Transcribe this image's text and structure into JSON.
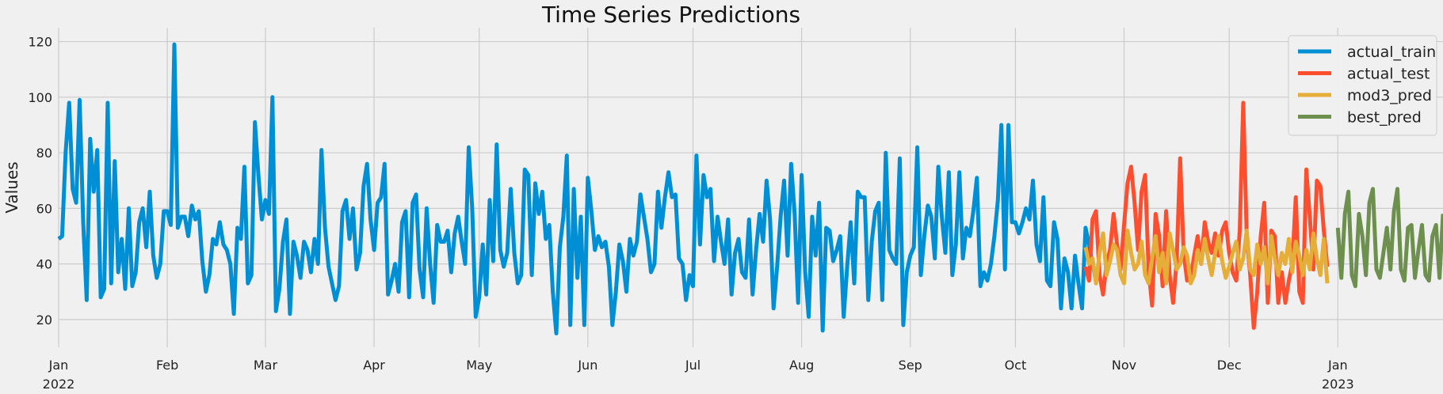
{
  "chart_data": {
    "type": "line",
    "title": "Time Series Predictions",
    "xlabel": "",
    "ylabel": "Values",
    "xlim": [
      "2022-01-01",
      "2023-01-31"
    ],
    "ylim": [
      10,
      125
    ],
    "yticks": [
      20,
      40,
      60,
      80,
      100,
      120
    ],
    "xticks": [
      {
        "date": "2022-01-01",
        "label": "Jan",
        "sublabel": "2022"
      },
      {
        "date": "2022-02-01",
        "label": "Feb",
        "sublabel": ""
      },
      {
        "date": "2022-03-01",
        "label": "Mar",
        "sublabel": ""
      },
      {
        "date": "2022-04-01",
        "label": "Apr",
        "sublabel": ""
      },
      {
        "date": "2022-05-01",
        "label": "May",
        "sublabel": ""
      },
      {
        "date": "2022-06-01",
        "label": "Jun",
        "sublabel": ""
      },
      {
        "date": "2022-07-01",
        "label": "Jul",
        "sublabel": ""
      },
      {
        "date": "2022-08-01",
        "label": "Aug",
        "sublabel": ""
      },
      {
        "date": "2022-09-01",
        "label": "Sep",
        "sublabel": ""
      },
      {
        "date": "2022-10-01",
        "label": "Oct",
        "sublabel": ""
      },
      {
        "date": "2022-11-01",
        "label": "Nov",
        "sublabel": ""
      },
      {
        "date": "2022-12-01",
        "label": "Dec",
        "sublabel": ""
      },
      {
        "date": "2023-01-01",
        "label": "Jan",
        "sublabel": "2023"
      }
    ],
    "grid": true,
    "legend_position": "top-right",
    "series": [
      {
        "name": "actual_train",
        "color": "#008fd5",
        "start_date": "2022-01-01",
        "frequency": "daily",
        "values": [
          49,
          50,
          80,
          98,
          67,
          62,
          99,
          55,
          27,
          85,
          66,
          81,
          28,
          31,
          98,
          33,
          77,
          37,
          49,
          31,
          60,
          32,
          37,
          55,
          60,
          46,
          66,
          43,
          35,
          40,
          59,
          59,
          54,
          119,
          53,
          57,
          57,
          50,
          61,
          56,
          59,
          41,
          30,
          36,
          49,
          47,
          55,
          47,
          45,
          40,
          22,
          53,
          49,
          75,
          33,
          36,
          91,
          72,
          56,
          63,
          58,
          100,
          23,
          31,
          48,
          56,
          22,
          48,
          43,
          35,
          48,
          45,
          37,
          49,
          40,
          81,
          53,
          39,
          33,
          27,
          32,
          59,
          63,
          49,
          60,
          38,
          44,
          68,
          76,
          56,
          45,
          62,
          64,
          76,
          29,
          34,
          40,
          30,
          55,
          59,
          28,
          62,
          65,
          38,
          28,
          60,
          40,
          26,
          54,
          48,
          48,
          52,
          37,
          51,
          57,
          48,
          40,
          82,
          60,
          21,
          28,
          47,
          29,
          63,
          41,
          83,
          45,
          39,
          44,
          67,
          44,
          33,
          36,
          74,
          72,
          36,
          69,
          58,
          66,
          49,
          54,
          30,
          15,
          46,
          57,
          79,
          18,
          67,
          35,
          57,
          18,
          71,
          59,
          45,
          50,
          46,
          48,
          39,
          18,
          30,
          47,
          41,
          30,
          49,
          43,
          48,
          65,
          57,
          49,
          37,
          40,
          66,
          53,
          64,
          73,
          64,
          65,
          42,
          40,
          27,
          36,
          32,
          79,
          47,
          72,
          64,
          67,
          41,
          57,
          48,
          40,
          56,
          29,
          44,
          49,
          37,
          35,
          56,
          29,
          45,
          58,
          48,
          70,
          56,
          24,
          39,
          57,
          70,
          43,
          76,
          58,
          26,
          72,
          37,
          21,
          57,
          43,
          62,
          16,
          53,
          52,
          41,
          45,
          50,
          21,
          39,
          55,
          33,
          66,
          64,
          64,
          27,
          48,
          59,
          62,
          27,
          80,
          45,
          42,
          40,
          78,
          18,
          37,
          43,
          46,
          82,
          36,
          50,
          61,
          57,
          42,
          75,
          57,
          44,
          73,
          36,
          47,
          73,
          42,
          53,
          50,
          59,
          71,
          32,
          37,
          34,
          40,
          50,
          63,
          90,
          38,
          90,
          55,
          55,
          51,
          55,
          60,
          56,
          70,
          47,
          41,
          64,
          34,
          32,
          55,
          49,
          24,
          42,
          37,
          24,
          43,
          33,
          24,
          53,
          47,
          40,
          34
        ]
      },
      {
        "name": "actual_test",
        "color": "#fc4f30",
        "start_date": "2022-10-21",
        "frequency": "daily",
        "values": [
          39,
          34,
          56,
          59,
          36,
          29,
          40,
          45,
          58,
          47,
          38,
          54,
          69,
          75,
          62,
          45,
          66,
          72,
          38,
          25,
          58,
          50,
          32,
          59,
          36,
          26,
          41,
          78,
          44,
          34,
          35,
          43,
          50,
          40,
          55,
          48,
          44,
          51,
          43,
          52,
          55,
          44,
          37,
          34,
          52,
          98,
          50,
          36,
          17,
          30,
          50,
          62,
          26,
          52,
          50,
          26,
          37,
          26,
          34,
          40,
          64,
          30,
          26,
          74,
          57,
          38,
          70,
          68,
          52,
          39
        ]
      },
      {
        "name": "mod3_pred",
        "color": "#e5ae38",
        "start_date": "2022-10-21",
        "frequency": "daily",
        "values": [
          46,
          40,
          42,
          33,
          44,
          51,
          36,
          41,
          47,
          45,
          36,
          33,
          52,
          44,
          38,
          40,
          48,
          36,
          33,
          42,
          50,
          37,
          44,
          33,
          51,
          45,
          38,
          40,
          46,
          43,
          33,
          36,
          45,
          40,
          49,
          42,
          36,
          44,
          50,
          41,
          35,
          39,
          44,
          48,
          38,
          42,
          52,
          38,
          36,
          47,
          40,
          46,
          33,
          50,
          42,
          36,
          44,
          40,
          49,
          37,
          48,
          43,
          36,
          45,
          38,
          51,
          42,
          36,
          49,
          33
        ]
      },
      {
        "name": "best_pred",
        "color": "#6d904f",
        "start_date": "2023-01-01",
        "frequency": "daily",
        "values": [
          53,
          35,
          58,
          66,
          36,
          32,
          58,
          50,
          36,
          62,
          67,
          38,
          35,
          44,
          53,
          38,
          59,
          67,
          38,
          34,
          53,
          54,
          35,
          45,
          54,
          36,
          34,
          50,
          54,
          35,
          58
        ]
      }
    ]
  }
}
